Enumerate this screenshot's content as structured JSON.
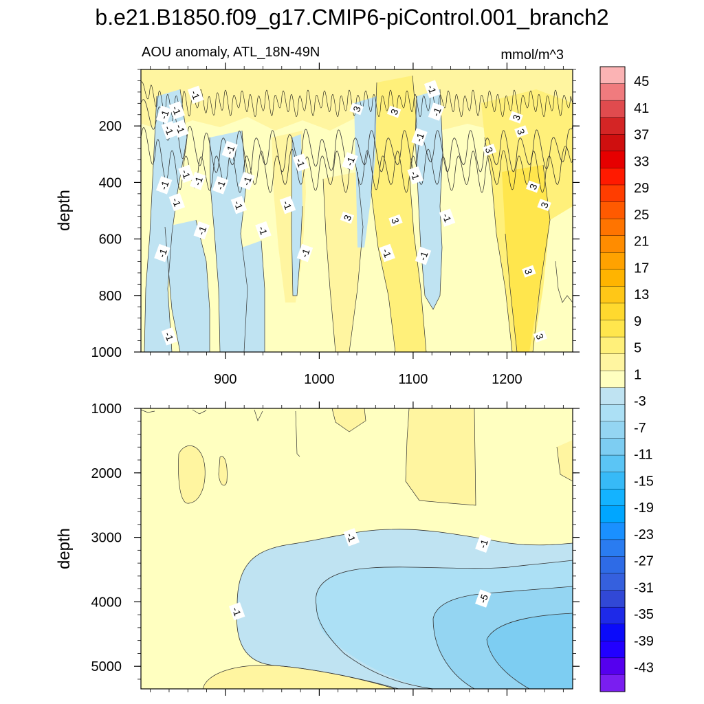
{
  "figure": {
    "title": "b.e21.B1850.f09_g17.CMIP6-piControl.001_branch2",
    "subtitle_left": "AOU anomaly, ATL_18N-49N",
    "subtitle_right": "mmol/m^3"
  },
  "chart_data": [
    {
      "type": "heatmap",
      "panel": "upper",
      "x_range": [
        810,
        1270
      ],
      "y_range": [
        1000,
        0
      ],
      "x_ticks": [
        "900",
        "1000",
        "1100",
        "1200"
      ],
      "y_ticks": [
        "200",
        "400",
        "600",
        "800",
        "1000"
      ],
      "ylabel": "depth",
      "contour_labels": [
        {
          "text": "-1",
          "x": 868,
          "y": 90
        },
        {
          "text": "-1",
          "x": 835,
          "y": 160
        },
        {
          "text": "-1",
          "x": 848,
          "y": 145
        },
        {
          "text": "-1",
          "x": 840,
          "y": 215
        },
        {
          "text": "-1",
          "x": 852,
          "y": 210
        },
        {
          "text": "3",
          "x": 1040,
          "y": 140
        },
        {
          "text": "3",
          "x": 1080,
          "y": 150
        },
        {
          "text": "-1",
          "x": 1120,
          "y": 70
        },
        {
          "text": "-1",
          "x": 1125,
          "y": 150
        },
        {
          "text": "3",
          "x": 1210,
          "y": 170
        },
        {
          "text": "3",
          "x": 1215,
          "y": 220
        },
        {
          "text": "-1",
          "x": 1107,
          "y": 240
        },
        {
          "text": "3",
          "x": 1181,
          "y": 285
        },
        {
          "text": "-1",
          "x": 905,
          "y": 285
        },
        {
          "text": "-1",
          "x": 1033,
          "y": 325
        },
        {
          "text": "-1",
          "x": 980,
          "y": 330
        },
        {
          "text": "-1",
          "x": 1102,
          "y": 375
        },
        {
          "text": "-1",
          "x": 858,
          "y": 370
        },
        {
          "text": "-1",
          "x": 871,
          "y": 395
        },
        {
          "text": "-1",
          "x": 923,
          "y": 395
        },
        {
          "text": "-1",
          "x": 835,
          "y": 410
        },
        {
          "text": "-1",
          "x": 895,
          "y": 410
        },
        {
          "text": "3",
          "x": 1228,
          "y": 415
        },
        {
          "text": "3",
          "x": 1240,
          "y": 480
        },
        {
          "text": "-1",
          "x": 848,
          "y": 470
        },
        {
          "text": "-1",
          "x": 914,
          "y": 480
        },
        {
          "text": "-1",
          "x": 966,
          "y": 480
        },
        {
          "text": "3",
          "x": 1030,
          "y": 525
        },
        {
          "text": "3",
          "x": 1081,
          "y": 535
        },
        {
          "text": "-1",
          "x": 1136,
          "y": 525
        },
        {
          "text": "-1",
          "x": 875,
          "y": 570
        },
        {
          "text": "-1",
          "x": 940,
          "y": 570
        },
        {
          "text": "-1",
          "x": 833,
          "y": 650
        },
        {
          "text": "-1",
          "x": 985,
          "y": 650
        },
        {
          "text": "-1",
          "x": 1072,
          "y": 650
        },
        {
          "text": "-1",
          "x": 1111,
          "y": 660
        },
        {
          "text": "3",
          "x": 1223,
          "y": 715
        },
        {
          "text": "-1",
          "x": 840,
          "y": 945
        },
        {
          "text": "3",
          "x": 1235,
          "y": 945
        }
      ]
    },
    {
      "type": "heatmap",
      "panel": "lower",
      "x_range": [
        810,
        1270
      ],
      "y_range": [
        5350,
        1000
      ],
      "y_ticks": [
        "1000",
        "2000",
        "3000",
        "4000",
        "5000"
      ],
      "ylabel": "depth",
      "contour_labels": [
        {
          "text": "-1",
          "x": 1034,
          "y": 3000
        },
        {
          "text": "-1",
          "x": 1175,
          "y": 3100
        },
        {
          "text": "-5",
          "x": 1175,
          "y": 3950
        },
        {
          "text": "-1",
          "x": 912,
          "y": 4150
        }
      ]
    }
  ],
  "colorbar": {
    "labels": [
      "45",
      "41",
      "37",
      "33",
      "29",
      "25",
      "21",
      "17",
      "13",
      "9",
      "5",
      "1",
      "-3",
      "-7",
      "-11",
      "-15",
      "-19",
      "-23",
      "-27",
      "-31",
      "-35",
      "-39",
      "-43"
    ],
    "colors": [
      "#fbb3b4",
      "#f07b7e",
      "#e04b4e",
      "#d42525",
      "#cf0f0f",
      "#e60000",
      "#ff1a00",
      "#ff3d00",
      "#ff5a00",
      "#ff7400",
      "#ff8c00",
      "#ffa200",
      "#ffb400",
      "#ffc717",
      "#ffd92e",
      "#ffe64d",
      "#fff07a",
      "#fff5a0",
      "#ffffc0",
      "#bfe3f2",
      "#ace0f5",
      "#94d5f2",
      "#7dcdf2",
      "#5bc5f5",
      "#37baf7",
      "#14b3ff",
      "#00a6ff",
      "#1a90ff",
      "#2a7cf0",
      "#2e6be6",
      "#3560de",
      "#3148d6",
      "#1e2ae8",
      "#0b0bfa",
      "#2200ff",
      "#5500ee",
      "#7a1ef0"
    ]
  }
}
